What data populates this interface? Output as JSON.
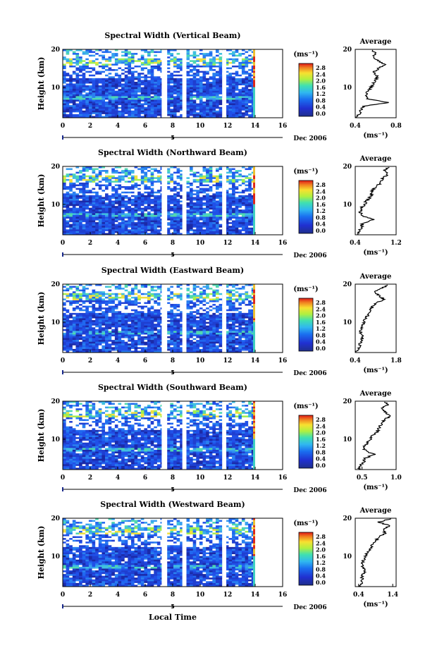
{
  "figure": {
    "xlabel": "Local Time",
    "date_label": "Dec 2006",
    "date_marker": "5",
    "ylabel": "Height (km)",
    "unit_label": "(ms⁻¹)",
    "avg_title": "Average",
    "avg_xlabel": "(ms⁻¹)",
    "colorbar_ticks": [
      "2.8",
      "2.4",
      "2.0",
      "1.6",
      "1.2",
      "0.8",
      "0.4",
      "0.0"
    ],
    "colors": {
      "background": "#1a3fd8",
      "low": "#2a30b8",
      "mid": "#30a0f0",
      "high": "#f2e83a",
      "max": "#e02818"
    }
  },
  "chart_data": [
    {
      "type": "heatmap",
      "title": "Spectral Width (Vertical Beam)",
      "x_ticks": [
        "0",
        "2",
        "4",
        "6",
        "8",
        "10",
        "12",
        "14",
        "16"
      ],
      "y_ticks": [
        "20",
        "10"
      ],
      "xlim": [
        0,
        16
      ],
      "ylim": [
        2,
        20
      ],
      "data_gaps_hours": [
        [
          7.2,
          7.6
        ],
        [
          8.7,
          9.0
        ],
        [
          11.6,
          11.9
        ],
        [
          14.0,
          16.0
        ]
      ],
      "colorbar_range": [
        0.0,
        2.8
      ],
      "average_profile": {
        "x_ticks": [
          "0.4",
          "0.8"
        ],
        "xlim": [
          0.4,
          0.8
        ],
        "height_km": [
          2,
          3,
          4,
          5,
          6,
          7,
          8,
          9,
          10,
          11,
          12,
          13,
          14,
          15,
          16,
          17,
          18,
          19,
          20
        ],
        "value": [
          0.42,
          0.44,
          0.46,
          0.48,
          0.72,
          0.52,
          0.5,
          0.53,
          0.55,
          0.58,
          0.6,
          0.62,
          0.58,
          0.63,
          0.7,
          0.62,
          0.58,
          0.6,
          0.55
        ]
      }
    },
    {
      "type": "heatmap",
      "title": "Spectral Width (Northward Beam)",
      "x_ticks": [
        "0",
        "2",
        "4",
        "6",
        "8",
        "10",
        "12",
        "14",
        "16"
      ],
      "y_ticks": [
        "20",
        "10"
      ],
      "xlim": [
        0,
        16
      ],
      "ylim": [
        2,
        20
      ],
      "data_gaps_hours": [
        [
          7.2,
          7.6
        ],
        [
          8.7,
          9.0
        ],
        [
          11.6,
          11.9
        ],
        [
          14.0,
          16.0
        ]
      ],
      "colorbar_range": [
        0.0,
        2.8
      ],
      "average_profile": {
        "x_ticks": [
          "0.4",
          "1.2"
        ],
        "xlim": [
          0.4,
          1.2
        ],
        "height_km": [
          2,
          3,
          4,
          5,
          6,
          7,
          8,
          9,
          10,
          11,
          12,
          13,
          14,
          15,
          16,
          17,
          18,
          19,
          20
        ],
        "value": [
          0.45,
          0.48,
          0.52,
          0.55,
          0.75,
          0.55,
          0.5,
          0.52,
          0.58,
          0.62,
          0.7,
          0.72,
          0.75,
          0.85,
          0.9,
          0.95,
          1.05,
          0.95,
          1.1
        ]
      }
    },
    {
      "type": "heatmap",
      "title": "Spectral Width (Eastward Beam)",
      "x_ticks": [
        "0",
        "2",
        "4",
        "6",
        "8",
        "10",
        "12",
        "14",
        "16"
      ],
      "y_ticks": [
        "20",
        "10"
      ],
      "xlim": [
        0,
        16
      ],
      "ylim": [
        2,
        20
      ],
      "data_gaps_hours": [
        [
          7.2,
          7.6
        ],
        [
          8.7,
          9.0
        ],
        [
          11.6,
          11.9
        ],
        [
          14.0,
          16.0
        ]
      ],
      "colorbar_range": [
        0.0,
        2.8
      ],
      "average_profile": {
        "x_ticks": [
          "0.4",
          "1.8"
        ],
        "xlim": [
          0.4,
          1.8
        ],
        "height_km": [
          2,
          3,
          4,
          5,
          6,
          7,
          8,
          9,
          10,
          11,
          12,
          13,
          14,
          15,
          16,
          17,
          18,
          19,
          20
        ],
        "value": [
          0.45,
          0.5,
          0.55,
          0.6,
          0.68,
          0.6,
          0.58,
          0.62,
          0.7,
          0.75,
          0.85,
          0.9,
          1.0,
          1.1,
          1.4,
          1.2,
          1.05,
          1.3,
          1.6
        ]
      }
    },
    {
      "type": "heatmap",
      "title": "Spectral Width (Southward Beam)",
      "x_ticks": [
        "0",
        "2",
        "4",
        "6",
        "8",
        "10",
        "12",
        "14",
        "16"
      ],
      "y_ticks": [
        "20",
        "10"
      ],
      "xlim": [
        0,
        16
      ],
      "ylim": [
        2,
        20
      ],
      "data_gaps_hours": [
        [
          7.2,
          7.6
        ],
        [
          8.7,
          9.0
        ],
        [
          11.6,
          11.9
        ],
        [
          14.0,
          16.0
        ]
      ],
      "colorbar_range": [
        0.0,
        2.8
      ],
      "average_profile": {
        "x_ticks": [
          "0.5",
          "1.0"
        ],
        "xlim": [
          0.4,
          1.0
        ],
        "height_km": [
          2,
          3,
          4,
          5,
          6,
          7,
          8,
          9,
          10,
          11,
          12,
          13,
          14,
          15,
          16,
          17,
          18,
          19,
          20
        ],
        "value": [
          0.45,
          0.48,
          0.52,
          0.55,
          0.68,
          0.55,
          0.52,
          0.58,
          0.62,
          0.66,
          0.72,
          0.75,
          0.78,
          0.82,
          0.9,
          0.85,
          0.78,
          0.88,
          0.82
        ]
      }
    },
    {
      "type": "heatmap",
      "title": "Spectral Width (Westward Beam)",
      "x_ticks": [
        "0",
        "2",
        "4",
        "6",
        "8",
        "10",
        "12",
        "14",
        "16"
      ],
      "y_ticks": [
        "20",
        "10"
      ],
      "xlim": [
        0,
        16
      ],
      "ylim": [
        2,
        20
      ],
      "data_gaps_hours": [
        [
          7.2,
          7.6
        ],
        [
          8.7,
          9.0
        ],
        [
          11.6,
          11.9
        ],
        [
          14.0,
          16.0
        ]
      ],
      "colorbar_range": [
        0.0,
        2.8
      ],
      "average_profile": {
        "x_ticks": [
          "0.4",
          "1.4"
        ],
        "xlim": [
          0.3,
          1.5
        ],
        "height_km": [
          2,
          3,
          4,
          5,
          6,
          7,
          8,
          9,
          10,
          11,
          12,
          13,
          14,
          15,
          16,
          17,
          18,
          19,
          20
        ],
        "value": [
          0.45,
          0.48,
          0.5,
          0.52,
          0.6,
          0.52,
          0.5,
          0.55,
          0.6,
          0.65,
          0.75,
          0.8,
          0.9,
          1.0,
          1.2,
          1.1,
          1.3,
          1.0,
          1.4
        ]
      }
    }
  ]
}
